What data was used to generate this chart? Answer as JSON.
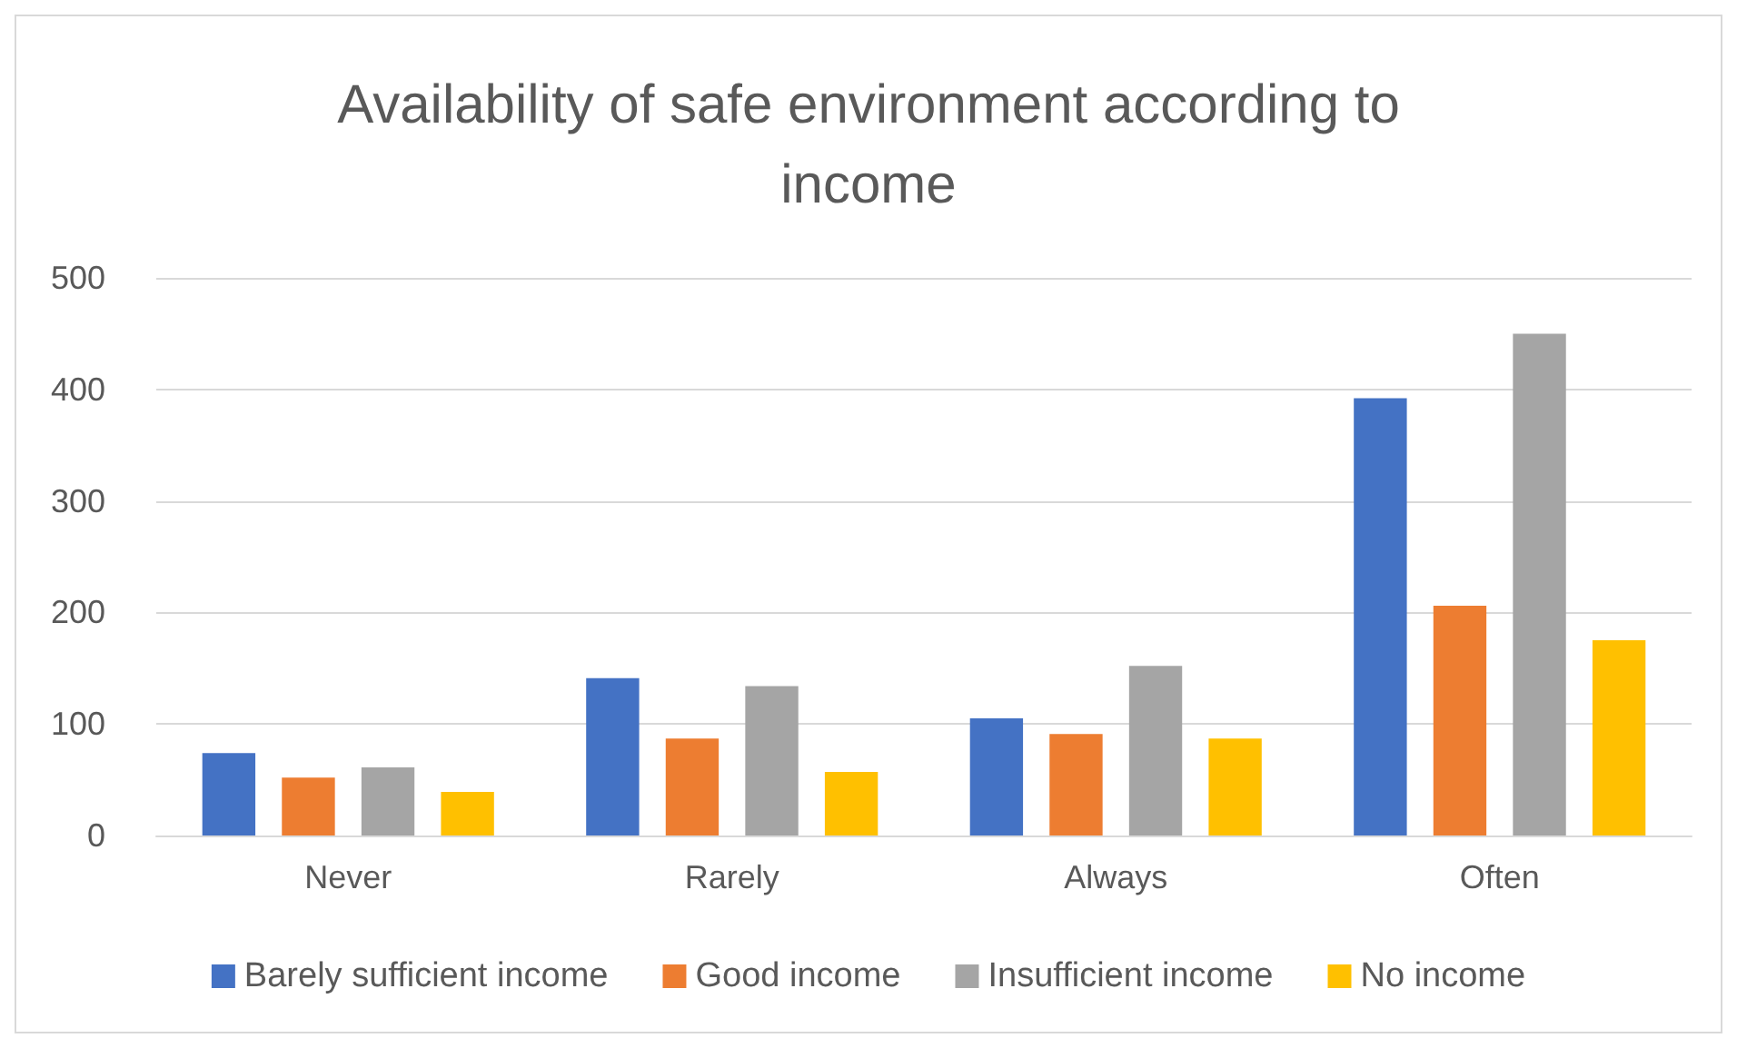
{
  "chart_data": {
    "type": "bar",
    "title": "Availability of safe environment according to\nincome",
    "categories": [
      "Never",
      "Rarely",
      "Always",
      "Often"
    ],
    "series": [
      {
        "name": "Barely sufficient income",
        "color": "#4472c4",
        "values": [
          74,
          141,
          105,
          392
        ]
      },
      {
        "name": "Good income",
        "color": "#ed7d31",
        "values": [
          52,
          87,
          91,
          206
        ]
      },
      {
        "name": "Insufficient income",
        "color": "#a5a5a5",
        "values": [
          61,
          134,
          152,
          450
        ]
      },
      {
        "name": "No income",
        "color": "#ffc000",
        "values": [
          39,
          57,
          87,
          175
        ]
      }
    ],
    "ylim": [
      0,
      500
    ],
    "yticks": [
      0,
      100,
      200,
      300,
      400,
      500
    ],
    "grid": "y",
    "legend": "bottom"
  }
}
